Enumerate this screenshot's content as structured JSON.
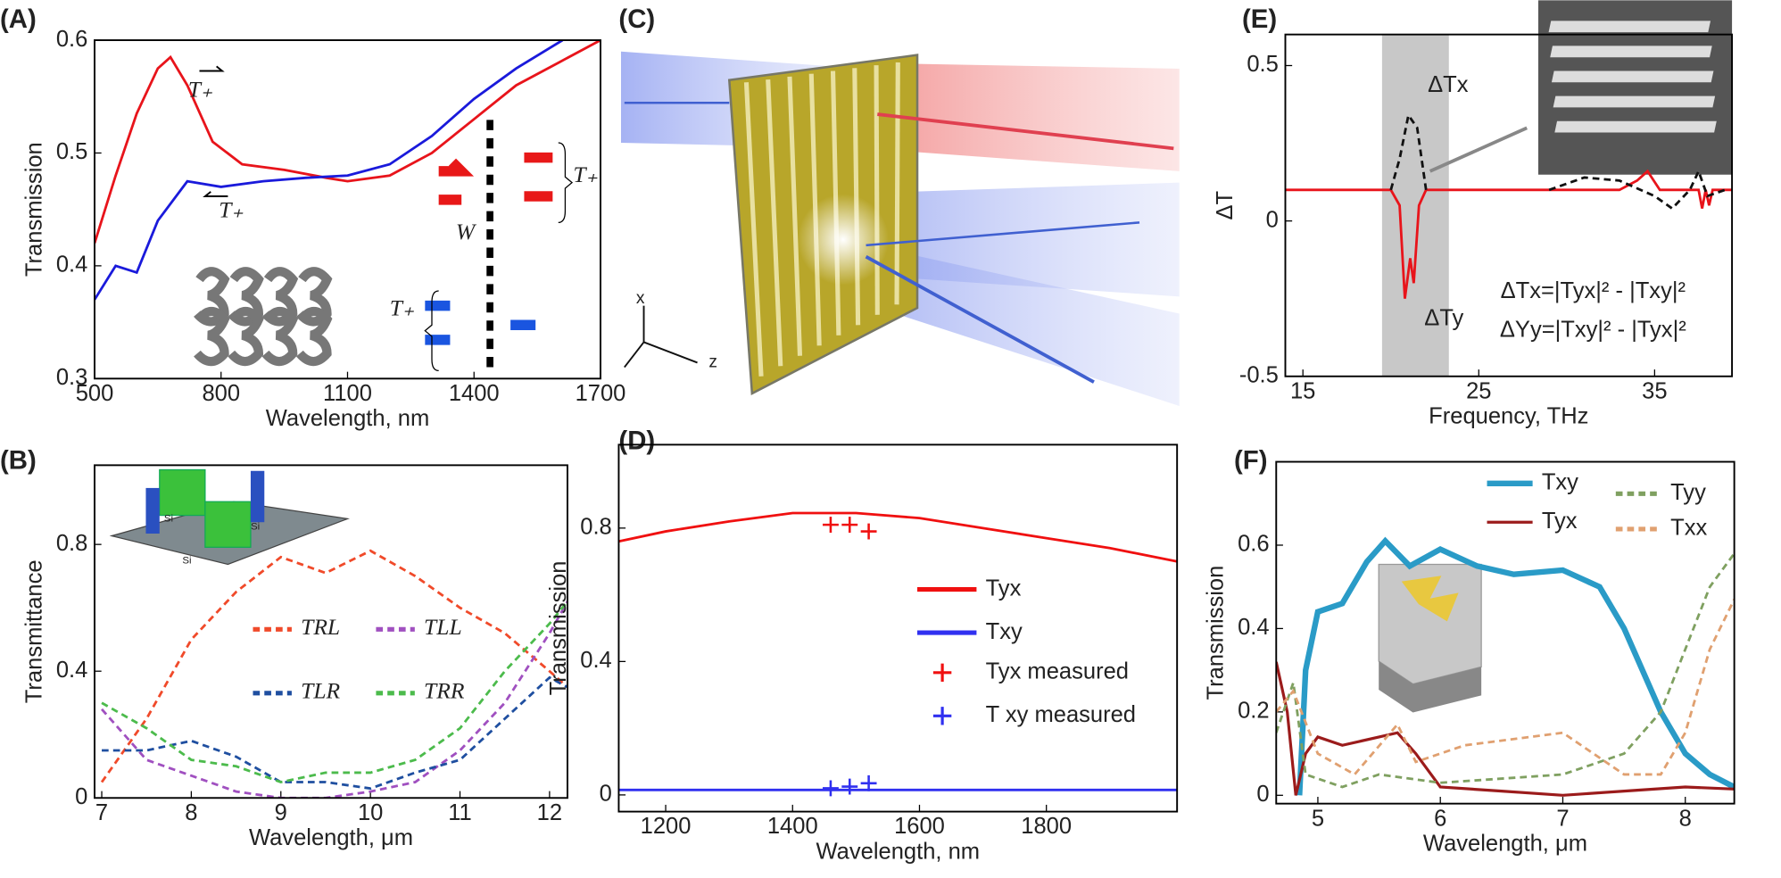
{
  "chart_data": [
    {
      "type": "line",
      "panel_label": "(A)",
      "x_label": "Wavelength, nm",
      "y_label": "Transmission",
      "xlim": [
        500,
        1700
      ],
      "xticks": [
        500,
        800,
        1100,
        1400,
        1700
      ],
      "ylim": [
        0.3,
        0.6
      ],
      "yticks": [
        0.3,
        0.4,
        0.5,
        0.6
      ],
      "series": [
        {
          "name": "T₊",
          "color": "#e8141b",
          "x": [
            500,
            550,
            600,
            650,
            680,
            720,
            780,
            850,
            950,
            1050,
            1100,
            1200,
            1300,
            1400,
            1500,
            1600,
            1700
          ],
          "values": [
            0.42,
            0.48,
            0.535,
            0.575,
            0.585,
            0.56,
            0.51,
            0.49,
            0.485,
            0.478,
            0.475,
            0.48,
            0.5,
            0.53,
            0.56,
            0.58,
            0.6
          ]
        },
        {
          "name": "T₊",
          "color": "#1a1adb",
          "x": [
            500,
            550,
            600,
            650,
            720,
            800,
            900,
            1000,
            1100,
            1200,
            1300,
            1400,
            1500,
            1610
          ],
          "values": [
            0.37,
            0.4,
            0.394,
            0.44,
            0.475,
            0.47,
            0.475,
            0.478,
            0.48,
            0.49,
            0.515,
            0.548,
            0.575,
            0.6
          ]
        }
      ],
      "annotations": [
        "T₊",
        "T₊",
        "W"
      ]
    },
    {
      "type": "line",
      "panel_label": "(B)",
      "x_label": "Wavelength, μm",
      "y_label": "Transmittance",
      "xlim": [
        6.92,
        12.2
      ],
      "xticks": [
        7,
        8,
        9,
        10,
        11,
        12
      ],
      "ylim": [
        0,
        1.05
      ],
      "yticks": [
        0,
        0.4,
        0.8
      ],
      "inset_labels": [
        "Si",
        "Si",
        "Si"
      ],
      "series": [
        {
          "name": "TRL",
          "color": "#f04a2a",
          "dash": true,
          "x": [
            7,
            7.5,
            8,
            8.5,
            9,
            9.5,
            10,
            10.5,
            11,
            11.5,
            12,
            12.2
          ],
          "values": [
            0.05,
            0.25,
            0.5,
            0.65,
            0.76,
            0.71,
            0.78,
            0.7,
            0.6,
            0.52,
            0.4,
            0.35
          ]
        },
        {
          "name": "TLL",
          "color": "#a050c0",
          "dash": true,
          "x": [
            7,
            7.5,
            8,
            8.5,
            9,
            9.5,
            10,
            10.5,
            11,
            11.5,
            12,
            12.2
          ],
          "values": [
            0.28,
            0.12,
            0.07,
            0.02,
            0,
            0,
            0.02,
            0.05,
            0.15,
            0.3,
            0.52,
            0.62
          ]
        },
        {
          "name": "TLR",
          "color": "#1f4fa0",
          "dash": true,
          "x": [
            7,
            7.5,
            8,
            8.5,
            9,
            9.5,
            10,
            10.5,
            11,
            11.5,
            12,
            12.2
          ],
          "values": [
            0.15,
            0.15,
            0.18,
            0.13,
            0.05,
            0.05,
            0.03,
            0.08,
            0.12,
            0.25,
            0.38,
            0.35
          ]
        },
        {
          "name": "TRR",
          "color": "#4cbb4c",
          "dash": true,
          "x": [
            7,
            7.5,
            8,
            8.5,
            9,
            9.5,
            10,
            10.5,
            11,
            11.5,
            12,
            12.2
          ],
          "values": [
            0.3,
            0.22,
            0.12,
            0.1,
            0.05,
            0.08,
            0.08,
            0.12,
            0.22,
            0.4,
            0.55,
            0.62
          ]
        }
      ]
    },
    {
      "type": "illustration",
      "panel_label": "(C)",
      "axis_labels": [
        "x",
        "z"
      ]
    },
    {
      "type": "line",
      "panel_label": "(D)",
      "x_label": "Wavelength, nm",
      "y_label": "Transmission",
      "xlim": [
        1126,
        2006
      ],
      "xticks": [
        1200,
        1400,
        1600,
        1800
      ],
      "ylim": [
        -0.05,
        1.05
      ],
      "yticks": [
        0,
        0.4,
        0.8
      ],
      "series": [
        {
          "name": "Tyx",
          "color": "#f01010",
          "x": [
            1126,
            1200,
            1300,
            1400,
            1500,
            1600,
            1700,
            1800,
            1900,
            2006
          ],
          "values": [
            0.76,
            0.79,
            0.82,
            0.845,
            0.845,
            0.83,
            0.8,
            0.77,
            0.74,
            0.7
          ]
        },
        {
          "name": "Txy",
          "color": "#3030f0",
          "x": [
            1126,
            1500,
            2006
          ],
          "values": [
            0.015,
            0.015,
            0.015
          ]
        },
        {
          "name": "Tyx measured",
          "color": "#f01010",
          "markers": true,
          "x": [
            1460,
            1490,
            1520
          ],
          "values": [
            0.81,
            0.81,
            0.79
          ]
        },
        {
          "name": "T xy measured",
          "color": "#3030f0",
          "markers": true,
          "x": [
            1460,
            1490,
            1520
          ],
          "values": [
            0.02,
            0.025,
            0.035
          ]
        }
      ]
    },
    {
      "type": "line",
      "panel_label": "(E)",
      "x_label": "Frequency, THz",
      "y_label": "ΔT",
      "xlim": [
        14,
        39.4
      ],
      "xticks": [
        15,
        25,
        35
      ],
      "ylim": [
        -0.5,
        0.6
      ],
      "yticks": [
        -0.5,
        0,
        0.5
      ],
      "shaded_range": [
        19.5,
        23.3
      ],
      "series": [
        {
          "name": "ΔTy",
          "color": "#e8141b",
          "x": [
            14,
            20,
            20.5,
            20.8,
            21.1,
            21.3,
            21.6,
            22,
            33,
            34,
            34.6,
            35.3,
            37.5,
            37.7,
            37.9,
            38.1,
            38.3,
            39.4
          ],
          "values": [
            0.1,
            0.1,
            0.05,
            -0.25,
            -0.12,
            -0.2,
            0.05,
            0.1,
            0.1,
            0.13,
            0.16,
            0.1,
            0.1,
            0.04,
            0.1,
            0.05,
            0.1,
            0.1
          ]
        },
        {
          "name": "ΔTx",
          "color": "#111111",
          "dash": true,
          "x": [
            20,
            20.5,
            21,
            21.5,
            22,
            null,
            29,
            31,
            33,
            35,
            36,
            37,
            37.5,
            38,
            39
          ],
          "values": [
            0.1,
            0.2,
            0.34,
            0.3,
            0.1,
            null,
            0.1,
            0.14,
            0.13,
            0.08,
            0.04,
            0.1,
            0.16,
            0.08,
            0.1
          ]
        }
      ],
      "annotations": [
        "ΔTx=|Tyx|² - |Txy|²",
        "ΔYy=|Txy|² - |Tyx|²"
      ]
    },
    {
      "type": "line",
      "panel_label": "(F)",
      "x_label": "Wavelength, μm",
      "y_label": "Transmission",
      "xlim": [
        4.66,
        8.4
      ],
      "xticks": [
        5,
        6,
        7,
        8
      ],
      "ylim": [
        -0.02,
        0.8
      ],
      "yticks": [
        0,
        0.2,
        0.4,
        0.6
      ],
      "series": [
        {
          "name": "Txy",
          "color": "#2a9bc7",
          "line_width": 5,
          "x": [
            4.85,
            4.9,
            5,
            5.2,
            5.4,
            5.55,
            5.75,
            6,
            6.3,
            6.6,
            7,
            7.3,
            7.5,
            7.8,
            8,
            8.2,
            8.4
          ],
          "values": [
            0,
            0.3,
            0.44,
            0.46,
            0.56,
            0.61,
            0.55,
            0.59,
            0.55,
            0.53,
            0.54,
            0.5,
            0.4,
            0.2,
            0.1,
            0.05,
            0.02
          ]
        },
        {
          "name": "Tyx",
          "color": "#9b1b1b",
          "line_width": 2.5,
          "x": [
            4.66,
            4.75,
            4.82,
            4.9,
            5,
            5.2,
            5.5,
            5.65,
            5.8,
            6,
            6.5,
            7,
            7.5,
            8,
            8.4
          ],
          "values": [
            0.32,
            0.2,
            0,
            0.1,
            0.14,
            0.12,
            0.14,
            0.15,
            0.1,
            0.02,
            0.01,
            0,
            0.01,
            0.02,
            0.015
          ]
        },
        {
          "name": "Tyy",
          "color": "#7fa060",
          "dash": true,
          "x": [
            4.66,
            4.8,
            4.9,
            5.2,
            5.5,
            6,
            7,
            7.5,
            7.8,
            8,
            8.2,
            8.4
          ],
          "values": [
            0.15,
            0.27,
            0.05,
            0.02,
            0.05,
            0.03,
            0.05,
            0.1,
            0.2,
            0.35,
            0.5,
            0.58
          ]
        },
        {
          "name": "Txx",
          "color": "#e0a070",
          "dash": true,
          "x": [
            4.66,
            4.8,
            5,
            5.3,
            5.65,
            5.8,
            6.2,
            7,
            7.5,
            7.8,
            8,
            8.2,
            8.4
          ],
          "values": [
            0.2,
            0.25,
            0.1,
            0.05,
            0.17,
            0.08,
            0.12,
            0.15,
            0.05,
            0.05,
            0.15,
            0.35,
            0.47
          ]
        }
      ]
    }
  ]
}
